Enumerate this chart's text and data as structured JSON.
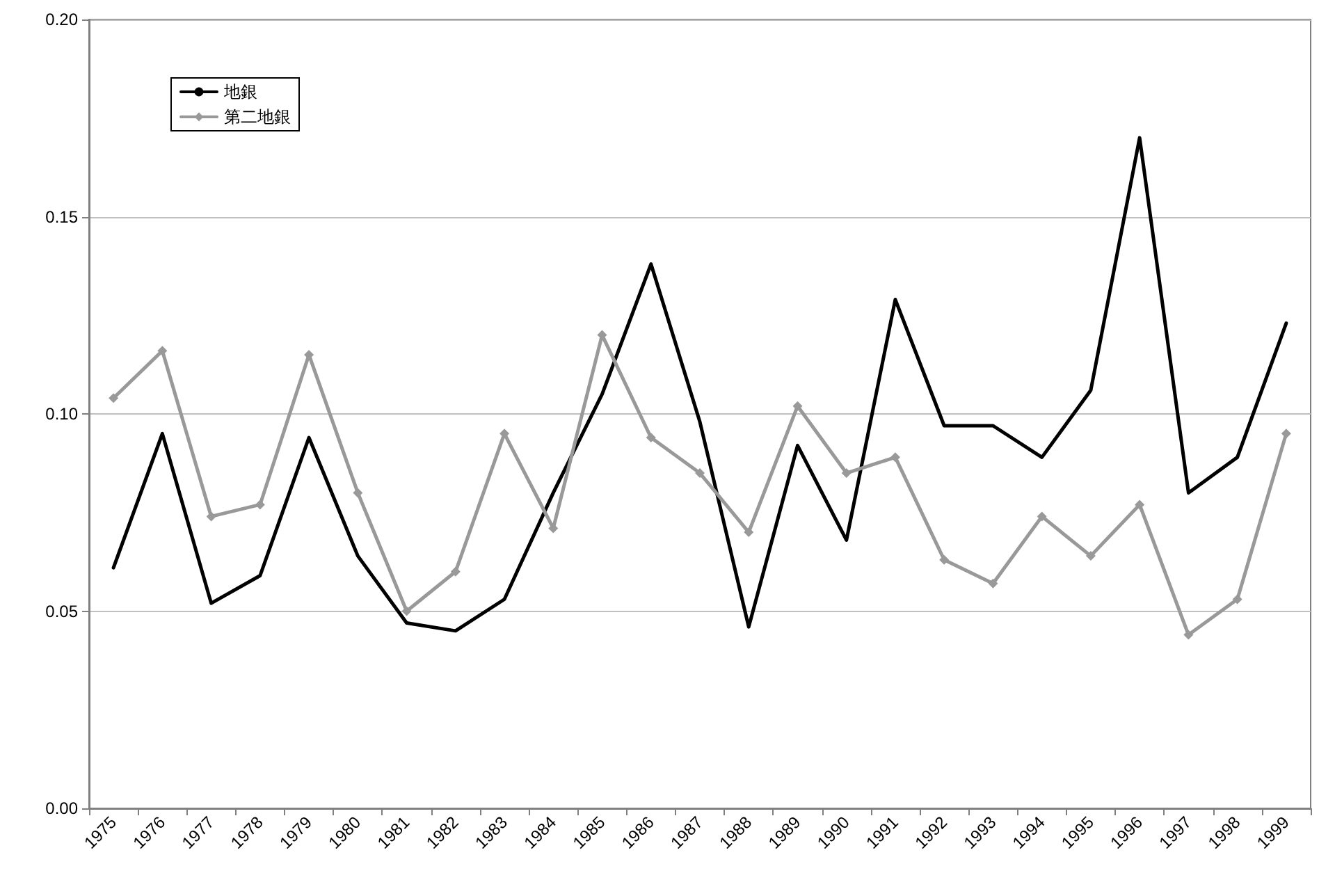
{
  "chart_data": {
    "type": "line",
    "categories": [
      "1975",
      "1976",
      "1977",
      "1978",
      "1979",
      "1980",
      "1981",
      "1982",
      "1983",
      "1984",
      "1985",
      "1986",
      "1987",
      "1988",
      "1989",
      "1990",
      "1991",
      "1992",
      "1993",
      "1994",
      "1995",
      "1996",
      "1997",
      "1998",
      "1999"
    ],
    "series": [
      {
        "name": "地銀",
        "color": "#000000",
        "marker": "none",
        "values": [
          0.061,
          0.095,
          0.052,
          0.059,
          0.094,
          0.064,
          0.047,
          0.045,
          0.053,
          0.08,
          0.105,
          0.138,
          0.098,
          0.046,
          0.092,
          0.068,
          0.129,
          0.097,
          0.097,
          0.089,
          0.106,
          0.17,
          0.08,
          0.089,
          0.123
        ]
      },
      {
        "name": "第二地銀",
        "color": "#999999",
        "marker": "diamond",
        "values": [
          0.104,
          0.116,
          0.074,
          0.077,
          0.115,
          0.08,
          0.05,
          0.06,
          0.095,
          0.071,
          0.12,
          0.094,
          0.085,
          0.07,
          0.102,
          0.085,
          0.089,
          0.063,
          0.057,
          0.074,
          0.064,
          0.077,
          0.044,
          0.053,
          0.095
        ]
      }
    ],
    "ylim": [
      0,
      0.2
    ],
    "yticks": [
      {
        "value": 0,
        "label": "0.00"
      },
      0.05,
      {
        "value": 0.1,
        "label": "0.10"
      },
      0.15,
      {
        "value": 0.2,
        "label": "0.20"
      }
    ],
    "grid": "y",
    "legend": "top left",
    "line_style": "solid"
  }
}
